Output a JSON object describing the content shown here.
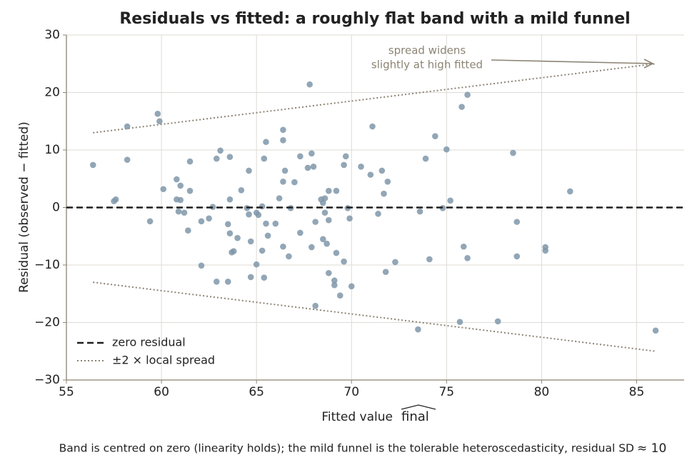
{
  "chart_data": {
    "type": "scatter",
    "title": "Residuals vs fitted: a roughly flat band with a mild funnel",
    "x_label": "Fitted value",
    "x_label_symbol": "final",
    "y_label": "Residual (observed − fitted)",
    "caption": "Band is centred on zero (linearity holds); the mild funnel is the tolerable heteroscedasticity, residual SD",
    "caption_math": "≈ 10",
    "annotation": [
      "spread widens",
      "slightly at high fitted"
    ],
    "xlim": [
      55,
      87.5
    ],
    "ylim": [
      -30,
      30
    ],
    "xticks": [
      55,
      60,
      65,
      70,
      75,
      80,
      85
    ],
    "yticks": [
      {
        "value": -30,
        "label": "−30"
      },
      {
        "value": -20,
        "label": "−20"
      },
      {
        "value": -10,
        "label": "−10"
      },
      0,
      10,
      20,
      30
    ],
    "grid": true,
    "legend": "lower left",
    "color": "#7f97a9",
    "x": [
      56.4,
      57.5,
      57.6,
      58.2,
      58.2,
      59.4,
      59.8,
      59.9,
      60.1,
      60.8,
      60.8,
      61.0,
      60.9,
      61.0,
      61.2,
      61.5,
      61.5,
      61.4,
      62.1,
      62.1,
      62.5,
      62.7,
      62.9,
      63.1,
      62.9,
      63.5,
      63.6,
      63.6,
      63.6,
      63.7,
      63.8,
      63.5,
      64.0,
      64.2,
      64.5,
      64.6,
      64.6,
      64.7,
      64.7,
      65.0,
      65.1,
      65.0,
      65.3,
      65.3,
      65.4,
      65.4,
      65.5,
      65.5,
      65.6,
      66.0,
      66.2,
      66.4,
      66.4,
      66.4,
      66.4,
      66.5,
      66.7,
      66.8,
      67.0,
      67.3,
      67.3,
      67.8,
      67.7,
      67.9,
      67.9,
      68.0,
      68.1,
      68.1,
      68.4,
      68.5,
      68.5,
      68.6,
      68.6,
      68.7,
      68.8,
      68.8,
      68.8,
      69.1,
      69.1,
      69.2,
      69.2,
      69.4,
      69.6,
      69.6,
      69.7,
      69.8,
      69.9,
      70.0,
      70.5,
      71.0,
      71.1,
      71.4,
      71.6,
      71.7,
      71.8,
      71.9,
      72.3,
      73.5,
      73.6,
      73.9,
      74.1,
      74.4,
      74.8,
      75.0,
      75.2,
      75.7,
      75.8,
      75.9,
      76.1,
      76.1,
      77.7,
      78.5,
      78.7,
      78.7,
      80.2,
      80.2,
      81.5,
      86.0
    ],
    "y": [
      7.4,
      1.1,
      1.4,
      14.1,
      8.3,
      -2.4,
      16.3,
      15.0,
      3.2,
      1.4,
      4.9,
      3.8,
      -0.7,
      1.3,
      -0.9,
      8.0,
      2.9,
      -4.0,
      -2.4,
      -10.1,
      -1.9,
      0.1,
      8.5,
      9.9,
      -12.9,
      -2.9,
      8.8,
      1.4,
      -4.5,
      -7.8,
      -7.6,
      -12.9,
      -5.3,
      3.0,
      -0.1,
      -1.2,
      6.4,
      -5.9,
      -12.1,
      -0.9,
      -1.3,
      -9.9,
      0.2,
      -7.5,
      -12.2,
      8.5,
      11.4,
      -2.8,
      -4.9,
      -2.8,
      1.6,
      13.5,
      11.7,
      4.5,
      -6.8,
      6.4,
      -8.5,
      -0.1,
      4.4,
      8.9,
      -4.4,
      21.4,
      6.9,
      9.4,
      -6.9,
      7.1,
      -2.5,
      -17.1,
      1.4,
      -5.5,
      0.8,
      -0.9,
      1.6,
      -6.3,
      -2.2,
      2.9,
      -11.4,
      -13.5,
      -12.7,
      -7.9,
      2.9,
      -15.3,
      -9.4,
      7.4,
      8.9,
      -0.1,
      -1.9,
      -13.7,
      7.1,
      5.7,
      14.1,
      -1.1,
      6.4,
      2.4,
      -11.2,
      4.5,
      -9.5,
      -21.2,
      -0.7,
      8.5,
      -9.0,
      12.4,
      -0.1,
      10.1,
      1.2,
      -19.9,
      17.5,
      -6.8,
      19.6,
      -8.8,
      -19.8,
      9.5,
      -2.5,
      -8.5,
      -6.9,
      -7.5,
      2.8,
      -21.4
    ],
    "zero_line": {
      "name": "zero residual",
      "y": 0,
      "color": "#1f1f1f"
    },
    "band": {
      "name": "±2 × local spread",
      "x": [
        56.4,
        86
      ],
      "upper": [
        13,
        25
      ],
      "lower": [
        -13,
        -25
      ],
      "color": "#8c8474"
    }
  }
}
